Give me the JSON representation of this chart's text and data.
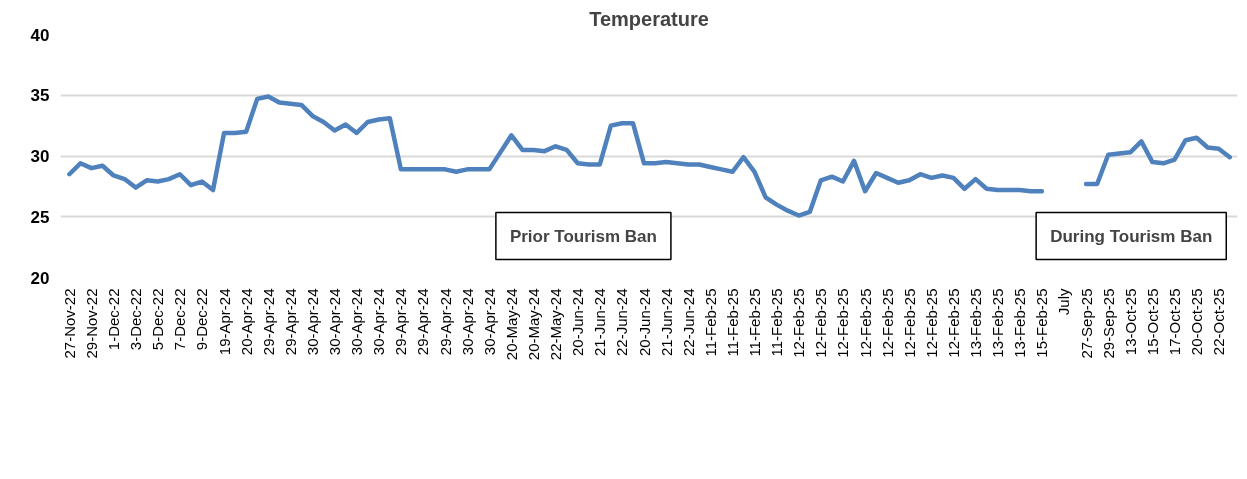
{
  "chart_data": {
    "type": "line",
    "title": "Temperature",
    "categories": [
      "27-Nov-22",
      null,
      "29-Nov-22",
      null,
      "1-Dec-22",
      null,
      "3-Dec-22",
      null,
      "5-Dec-22",
      null,
      "7-Dec-22",
      null,
      "9-Dec-22",
      null,
      "19-Apr-24",
      null,
      "20-Apr-24",
      null,
      "29-Apr-24",
      null,
      "29-Apr-24",
      null,
      "30-Apr-24",
      null,
      "30-Apr-24",
      null,
      "30-Apr-24",
      null,
      "30-Apr-24",
      null,
      "29-Apr-24",
      null,
      "29-Apr-24",
      null,
      "29-Apr-24",
      null,
      "30-Apr-24",
      null,
      "30-Apr-24",
      null,
      "20-May-24",
      null,
      "20-May-24",
      null,
      "22-May-24",
      null,
      "20-Jun-24",
      null,
      "21-Jun-24",
      null,
      "22-Jun-24",
      null,
      "20-Jun-24",
      null,
      "21-Jun-24",
      null,
      "22-Jun-24",
      null,
      "11-Feb-25",
      null,
      "11-Feb-25",
      null,
      "11-Feb-25",
      null,
      "11-Feb-25",
      null,
      "12-Feb-25",
      null,
      "12-Feb-25",
      null,
      "12-Feb-25",
      null,
      "12-Feb-25",
      null,
      "12-Feb-25",
      null,
      "12-Feb-25",
      null,
      "12-Feb-25",
      null,
      "12-Feb-25",
      null,
      "13-Feb-25",
      null,
      "13-Feb-25",
      null,
      "13-Feb-25",
      null,
      "15-Feb-25",
      null,
      "July",
      null,
      "27-Sep-25",
      null,
      "29-Sep-25",
      null,
      "13-Oct-25",
      null,
      "15-Oct-25",
      null,
      "17-Oct-25",
      null,
      "20-Oct-25",
      null,
      "22-Oct-25",
      null
    ],
    "series": [
      {
        "color": "#4f81bd",
        "values": [
          28.5,
          29.4,
          29.0,
          29.2,
          28.4,
          28.1,
          27.4,
          28.0,
          27.9,
          28.1,
          28.5,
          27.6,
          27.9,
          27.2,
          31.9,
          31.9,
          32.0,
          34.7,
          34.9,
          34.4,
          34.3,
          34.2,
          33.3,
          32.8,
          32.1,
          32.6,
          31.9,
          32.8,
          33.0,
          33.1,
          28.9,
          28.9,
          28.9,
          28.9,
          28.9,
          28.7,
          28.9,
          28.9,
          28.9,
          30.3,
          31.7,
          30.5,
          30.5,
          30.4,
          30.8,
          30.5,
          29.4,
          29.3,
          29.3,
          32.5,
          32.7,
          32.7,
          29.4,
          29.4,
          29.5,
          29.4,
          29.3,
          29.3,
          29.1,
          28.9,
          28.7,
          29.9,
          28.7,
          26.6,
          26.0,
          25.5,
          25.1,
          25.4,
          28.0,
          28.3,
          27.9,
          29.6,
          27.1,
          28.6,
          28.2,
          27.8,
          28.0,
          28.5,
          28.2,
          28.4,
          28.2,
          27.3,
          28.1,
          27.3,
          27.2,
          27.2,
          27.2,
          27.1,
          27.1,
          null,
          null,
          null,
          27.7,
          27.7,
          30.1,
          30.2,
          30.3,
          31.2,
          29.5,
          29.4,
          29.7,
          31.3,
          31.5,
          30.7,
          30.6,
          29.9
        ]
      }
    ],
    "ylim": [
      20,
      40
    ],
    "yticks": [
      20,
      25,
      30,
      35,
      40
    ],
    "grid": "y",
    "line_style": "solid",
    "marker": "none",
    "annotations": [
      "Prior Tourism Ban",
      "During Tourism Ban"
    ]
  }
}
